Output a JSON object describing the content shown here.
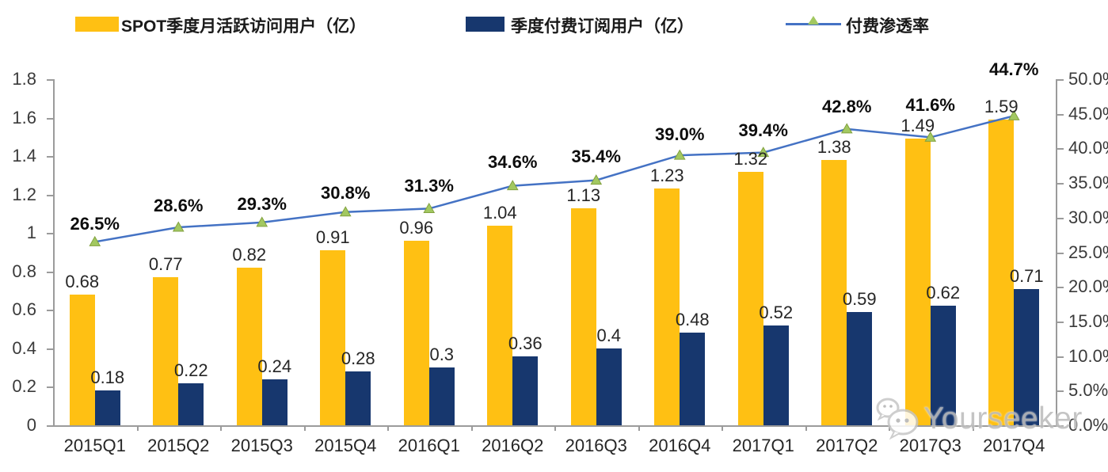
{
  "legend": {
    "items": [
      {
        "label": "SPOT季度月活跃访问用户（亿）",
        "type": "bar",
        "color": "#FFC013"
      },
      {
        "label": "季度付费订阅用户（亿）",
        "type": "bar",
        "color": "#17376E"
      },
      {
        "label": "付费渗透率",
        "type": "line",
        "color": "#4472C4",
        "marker_color": "#A2C861"
      }
    ]
  },
  "chart_data": {
    "type": "bar",
    "subtype": "grouped-bar-with-line",
    "categories": [
      "2015Q1",
      "2015Q2",
      "2015Q3",
      "2015Q4",
      "2016Q1",
      "2016Q2",
      "2016Q3",
      "2016Q4",
      "2017Q1",
      "2017Q2",
      "2017Q3",
      "2017Q4"
    ],
    "series": [
      {
        "name": "SPOT季度月活跃访问用户（亿）",
        "type": "bar",
        "axis": "left",
        "color": "#FFC013",
        "values": [
          0.68,
          0.77,
          0.82,
          0.91,
          0.96,
          1.04,
          1.13,
          1.23,
          1.32,
          1.38,
          1.49,
          1.59
        ],
        "labels": [
          "0.68",
          "0.77",
          "0.82",
          "0.91",
          "0.96",
          "1.04",
          "1.13",
          "1.23",
          "1.32",
          "1.38",
          "1.49",
          "1.59"
        ]
      },
      {
        "name": "季度付费订阅用户（亿）",
        "type": "bar",
        "axis": "left",
        "color": "#17376E",
        "values": [
          0.18,
          0.22,
          0.24,
          0.28,
          0.3,
          0.36,
          0.4,
          0.48,
          0.52,
          0.59,
          0.62,
          0.71
        ],
        "labels": [
          "0.18",
          "0.22",
          "0.24",
          "0.28",
          "0.3",
          "0.36",
          "0.4",
          "0.48",
          "0.52",
          "0.59",
          "0.62",
          "0.71"
        ]
      },
      {
        "name": "付费渗透率",
        "type": "line",
        "axis": "right",
        "color": "#4472C4",
        "marker": "triangle",
        "marker_color": "#A2C861",
        "marker_edge_color": "#82A13F",
        "values": [
          26.5,
          28.6,
          29.3,
          30.8,
          31.3,
          34.6,
          35.4,
          39.0,
          39.4,
          42.8,
          41.6,
          44.7
        ],
        "labels": [
          "26.5%",
          "28.6%",
          "29.3%",
          "30.8%",
          "31.3%",
          "34.6%",
          "35.4%",
          "39.0%",
          "39.4%",
          "42.8%",
          "41.6%",
          "44.7%"
        ]
      }
    ],
    "left_axis": {
      "min": 0,
      "max": 1.8,
      "step": 0.2,
      "tick_labels": [
        "0",
        "0.2",
        "0.4",
        "0.6",
        "0.8",
        "1",
        "1.2",
        "1.4",
        "1.6",
        "1.8"
      ]
    },
    "right_axis": {
      "min": 0,
      "max": 50,
      "step": 5,
      "tick_labels": [
        "0.0%",
        "5.0%",
        "10.0%",
        "15.0%",
        "20.0%",
        "25.0%",
        "30.0%",
        "35.0%",
        "40.0%",
        "45.0%",
        "50.0%"
      ]
    },
    "grid": false,
    "legend_position": "top",
    "pct_label_gaps": [
      10,
      15,
      11,
      12,
      16,
      18,
      18,
      14,
      16,
      16,
      28,
      46
    ]
  },
  "watermark": {
    "text": "Yourseeker",
    "icon": "wechat-icon"
  }
}
